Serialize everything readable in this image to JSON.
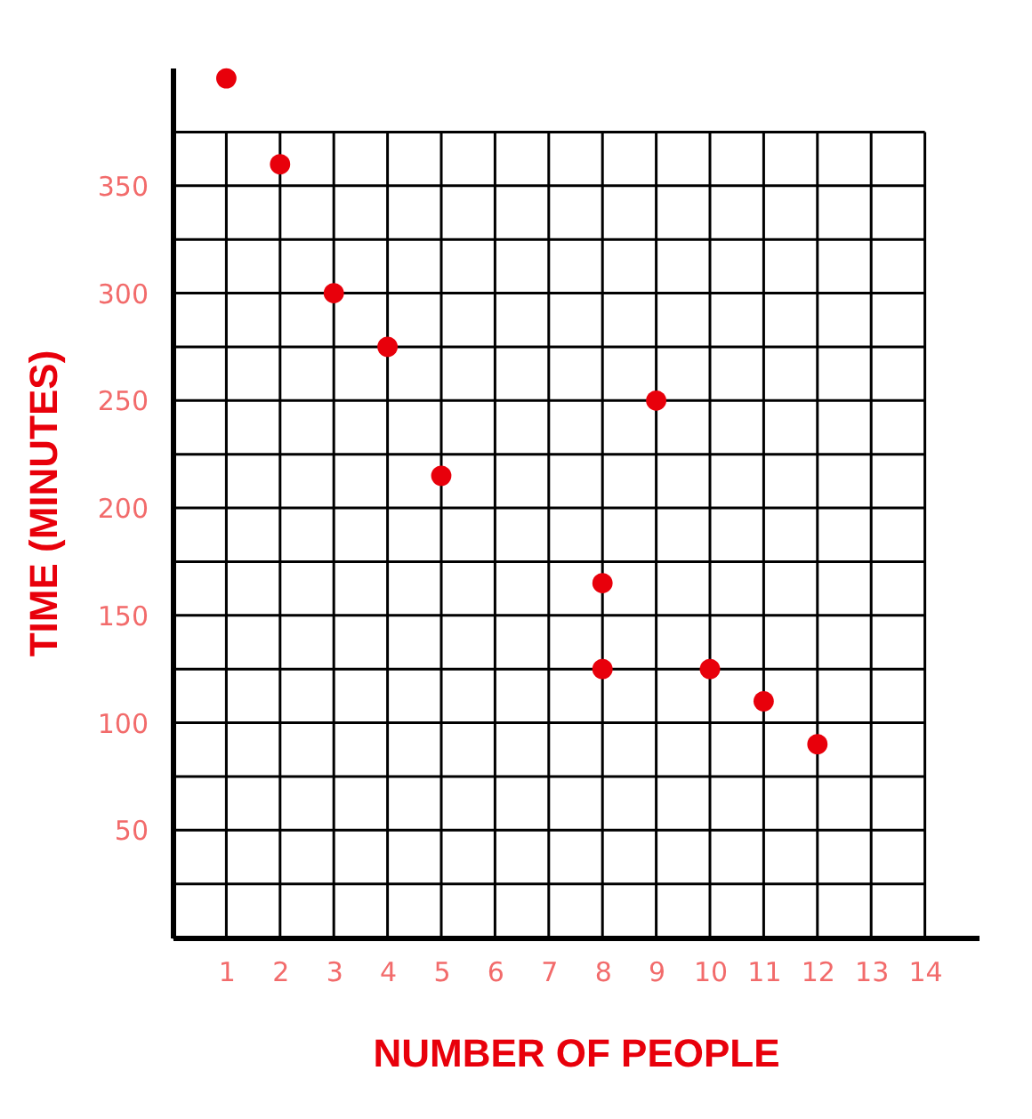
{
  "chart_data": {
    "type": "scatter",
    "xlabel": "NUMBER OF PEOPLE",
    "ylabel": "TIME (MINUTES)",
    "x": [
      1,
      2,
      3,
      4,
      5,
      8,
      8,
      9,
      10,
      11,
      12
    ],
    "series": [
      {
        "color": "#e8000b",
        "values": [
          400,
          360,
          300,
          275,
          215,
          165,
          125,
          250,
          125,
          110,
          90
        ]
      }
    ],
    "xlim": [
      0,
      15
    ],
    "ylim": [
      0,
      405
    ],
    "xticks": [
      {
        "value": 0,
        "label": null
      },
      1,
      2,
      3,
      4,
      5,
      6,
      7,
      8,
      9,
      10,
      11,
      12,
      13,
      14
    ],
    "yticks": [
      {
        "value": 0,
        "label": null
      },
      {
        "value": 25,
        "label": null
      },
      50,
      {
        "value": 75,
        "label": null
      },
      100,
      {
        "value": 125,
        "label": null
      },
      150,
      {
        "value": 175,
        "label": null
      },
      200,
      {
        "value": 225,
        "label": null
      },
      250,
      {
        "value": 275,
        "label": null
      },
      300,
      {
        "value": 325,
        "label": null
      },
      350,
      {
        "value": 375,
        "label": null
      }
    ],
    "grid": true,
    "marker": "circle"
  }
}
